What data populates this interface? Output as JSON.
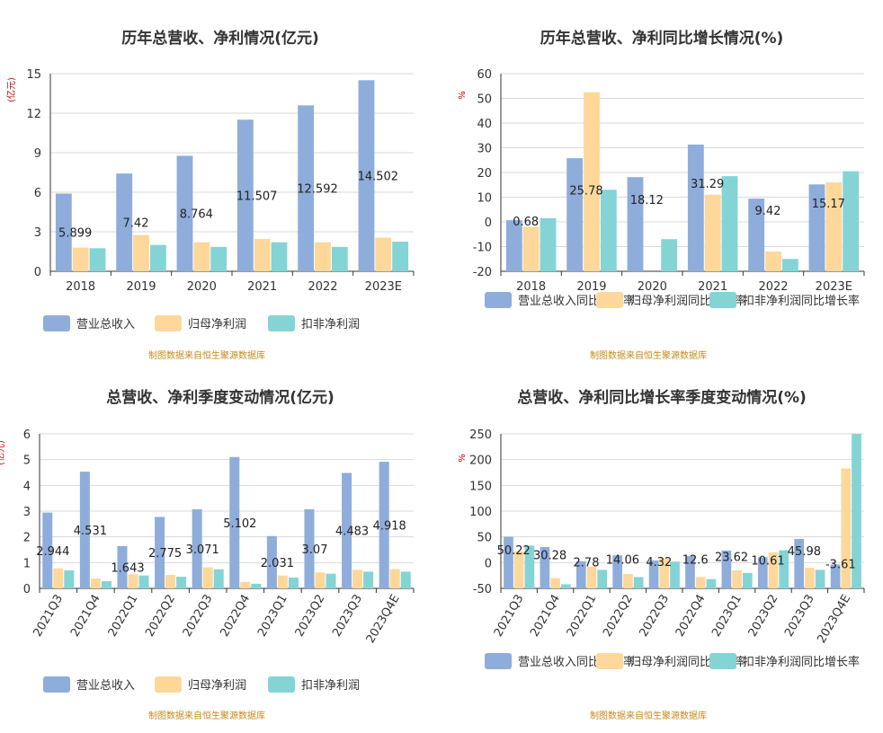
{
  "source_note": "制图数据来自恒生聚源数据库",
  "colors": {
    "revenue": "#8eaddb",
    "parent": "#fdd89a",
    "deducted": "#84d4d6"
  },
  "chart_data": [
    {
      "type": "bar",
      "title": "历年总营收、净利情况(亿元)",
      "unit": "(亿元)",
      "categories": [
        "2018",
        "2019",
        "2020",
        "2021",
        "2022",
        "2023E"
      ],
      "ylim": [
        0,
        15
      ],
      "yticks": [
        0,
        3,
        6,
        9,
        12,
        15
      ],
      "series": [
        {
          "name": "营业总收入",
          "values": [
            5.899,
            7.42,
            8.764,
            11.507,
            12.592,
            14.502
          ]
        },
        {
          "name": "归母净利润",
          "values": [
            1.8,
            2.75,
            2.2,
            2.45,
            2.2,
            2.55
          ]
        },
        {
          "name": "扣非净利润",
          "values": [
            1.75,
            2.0,
            1.85,
            2.2,
            1.85,
            2.25
          ]
        }
      ],
      "data_labels": [
        "5.899",
        "7.42",
        "8.764",
        "11.507",
        "12.592",
        "14.502"
      ]
    },
    {
      "type": "line",
      "title": "历年总营收、净利同比增长情况(%)",
      "unit": "%",
      "categories": [
        "2018",
        "2019",
        "2020",
        "2021",
        "2022",
        "2023E"
      ],
      "ylim": [
        -20,
        60
      ],
      "yticks": [
        -20,
        -10,
        0,
        10,
        20,
        30,
        40,
        50,
        60
      ],
      "series": [
        {
          "name": "营业总收入同比增长率",
          "values": [
            0.68,
            25.78,
            18.12,
            31.29,
            9.42,
            15.17
          ]
        },
        {
          "name": "归母净利润同比增长率",
          "values": [
            -2.0,
            52.5,
            -20.0,
            11.0,
            -12.0,
            16.0
          ]
        },
        {
          "name": "扣非净利润同比增长率",
          "values": [
            1.5,
            13.0,
            -7.0,
            18.5,
            -15.0,
            20.5
          ]
        }
      ],
      "data_labels": [
        "0.68",
        "25.78",
        "18.12",
        "31.29",
        "9.42",
        "15.17"
      ]
    },
    {
      "type": "bar",
      "title": "总营收、净利季度变动情况(亿元)",
      "unit": "(亿元)",
      "categories": [
        "2021Q3",
        "2021Q4",
        "2022Q1",
        "2022Q2",
        "2022Q3",
        "2022Q4",
        "2023Q1",
        "2023Q2",
        "2023Q3",
        "2023Q4E"
      ],
      "ylim": [
        0,
        6
      ],
      "yticks": [
        0,
        1,
        2,
        3,
        4,
        5,
        6
      ],
      "series": [
        {
          "name": "营业总收入",
          "values": [
            2.944,
            4.531,
            1.643,
            2.775,
            3.071,
            5.102,
            2.031,
            3.07,
            4.483,
            4.918
          ]
        },
        {
          "name": "归母净利润",
          "values": [
            0.78,
            0.38,
            0.55,
            0.52,
            0.82,
            0.25,
            0.5,
            0.62,
            0.72,
            0.75
          ]
        },
        {
          "name": "扣非净利润",
          "values": [
            0.7,
            0.28,
            0.5,
            0.45,
            0.74,
            0.18,
            0.42,
            0.57,
            0.65,
            0.65
          ]
        }
      ],
      "data_labels": [
        "2.944",
        "4.531",
        "1.643",
        "2.775",
        "3.071",
        "5.102",
        "2.031",
        "3.07",
        "4.483",
        "4.918"
      ]
    },
    {
      "type": "line",
      "title": "总营收、净利同比增长率季度变动情况(%)",
      "unit": "%",
      "categories": [
        "2021Q3",
        "2021Q4",
        "2022Q1",
        "2022Q2",
        "2022Q3",
        "2022Q4",
        "2023Q1",
        "2023Q2",
        "2023Q3",
        "2023Q4E"
      ],
      "ylim": [
        -50,
        250
      ],
      "yticks": [
        -50,
        0,
        50,
        100,
        150,
        200,
        250
      ],
      "series": [
        {
          "name": "营业总收入同比增长率",
          "values": [
            50.22,
            30.28,
            2.78,
            14.06,
            4.32,
            12.6,
            23.62,
            10.61,
            45.98,
            -3.61
          ]
        },
        {
          "name": "归母净利润同比增长率",
          "values": [
            22.0,
            -30.0,
            -8.0,
            -22.0,
            8.0,
            -28.0,
            -15.0,
            20.0,
            -10.0,
            183.0
          ]
        },
        {
          "name": "扣非净利润同比增长率",
          "values": [
            33.0,
            -42.0,
            -14.0,
            -28.0,
            2.0,
            -32.0,
            -20.0,
            24.0,
            -14.0,
            250.0
          ]
        }
      ],
      "data_labels": [
        "50.22",
        "30.28",
        "2.78",
        "14.06",
        "4.32",
        "12.6",
        "23.62",
        "10.61",
        "45.98",
        "-3.61"
      ]
    }
  ]
}
